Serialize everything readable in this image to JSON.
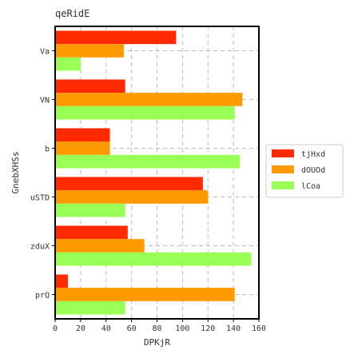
{
  "chart_data": {
    "type": "bar",
    "orientation": "horizontal",
    "title": "qeRidE",
    "xlabel": "DPKjR",
    "ylabel": "GnebXHSs",
    "categories": [
      "Va",
      "VN",
      "b",
      "uSTD",
      "zduX",
      "prQ"
    ],
    "series": [
      {
        "name": "tjHxd",
        "color": "#ff2a00",
        "values": [
          95,
          55,
          43,
          116,
          57,
          10
        ]
      },
      {
        "name": "dOUOd",
        "color": "#ff9900",
        "values": [
          54,
          147,
          43,
          120,
          70,
          141
        ]
      },
      {
        "name": "lCoa",
        "color": "#99ff55",
        "values": [
          20,
          141,
          145,
          55,
          154,
          55
        ]
      }
    ],
    "xlim": [
      0,
      160
    ],
    "xticks": [
      0,
      20,
      40,
      60,
      80,
      100,
      120,
      140,
      160
    ],
    "grid": true,
    "legend_position": "right"
  }
}
